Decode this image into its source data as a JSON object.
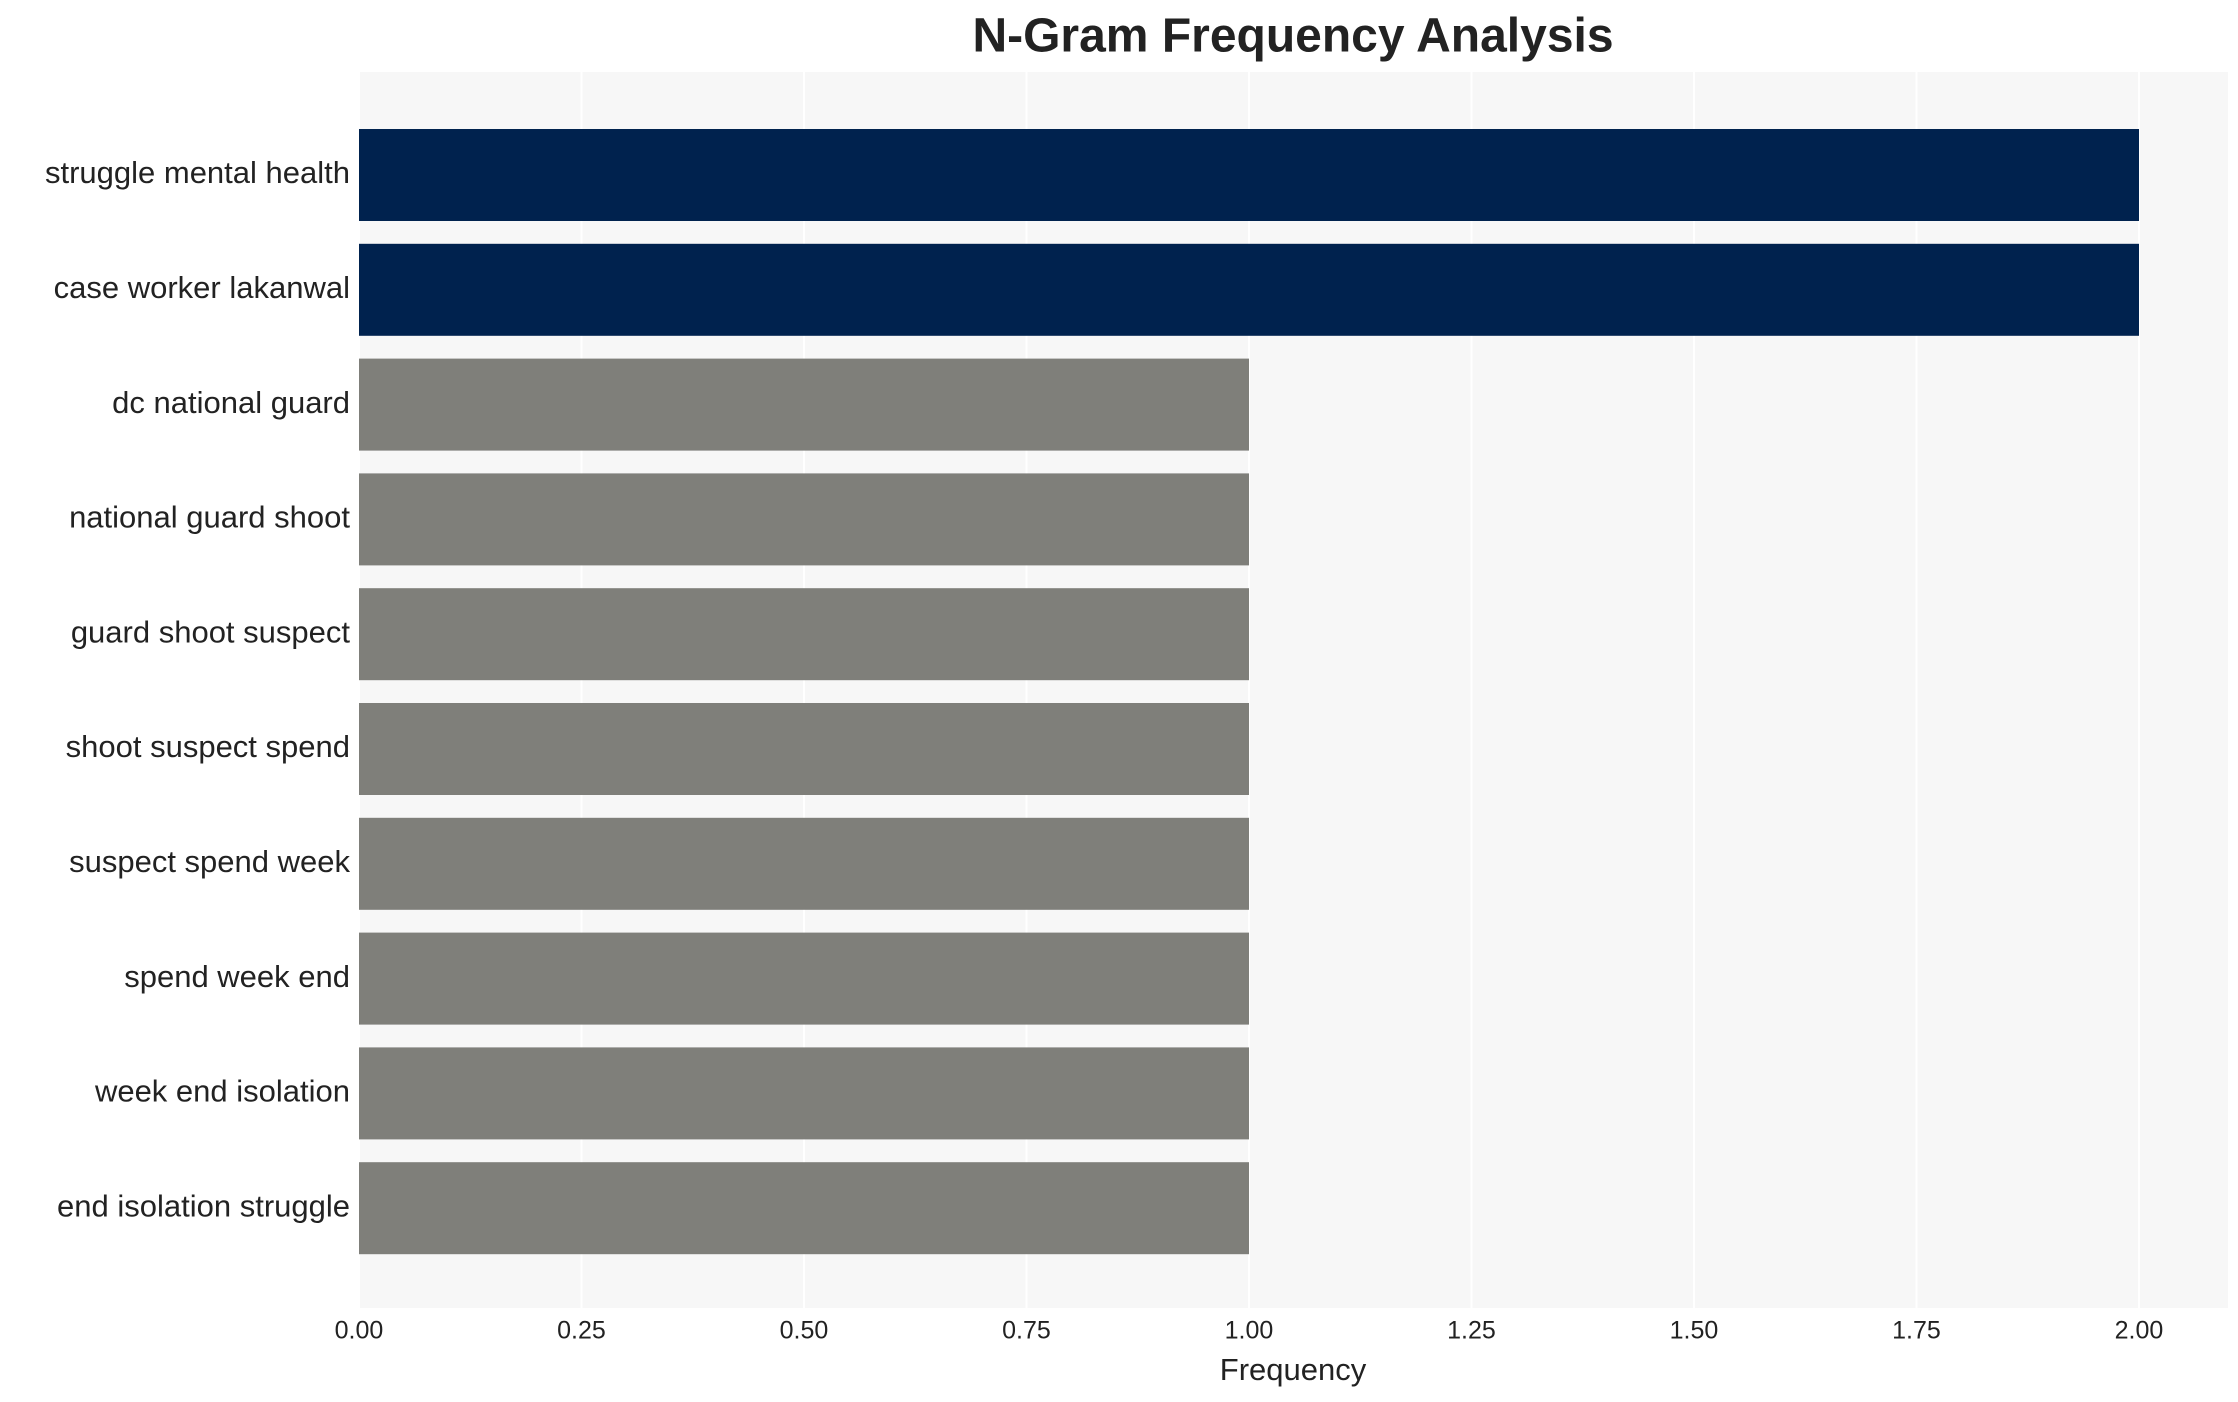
{
  "chart_data": {
    "type": "barh",
    "title": "N-Gram Frequency Analysis",
    "x_label": "Frequency",
    "categories": [
      "struggle mental health",
      "case worker lakanwal",
      "dc national guard",
      "national guard shoot",
      "guard shoot suspect",
      "shoot suspect spend",
      "suspect spend week",
      "spend week end",
      "week end isolation",
      "end isolation struggle"
    ],
    "values": [
      2,
      2,
      1,
      1,
      1,
      1,
      1,
      1,
      1,
      1
    ],
    "colors": [
      "#00224e",
      "#00224e",
      "#7f7f7a",
      "#7f7f7a",
      "#7f7f7a",
      "#7f7f7a",
      "#7f7f7a",
      "#7f7f7a",
      "#7f7f7a",
      "#7f7f7a"
    ],
    "xlim": [
      0,
      2.1
    ],
    "xticks": [
      {
        "value": 0,
        "label": "0.00"
      },
      {
        "value": 0.25,
        "label": "0.25"
      },
      {
        "value": 0.5,
        "label": "0.50"
      },
      {
        "value": 0.75,
        "label": "0.75"
      },
      {
        "value": 1,
        "label": "1.00"
      },
      {
        "value": 1.25,
        "label": "1.25"
      },
      {
        "value": 1.5,
        "label": "1.50"
      },
      {
        "value": 1.75,
        "label": "1.75"
      },
      {
        "value": 2,
        "label": "2.00"
      }
    ],
    "grid": true
  }
}
